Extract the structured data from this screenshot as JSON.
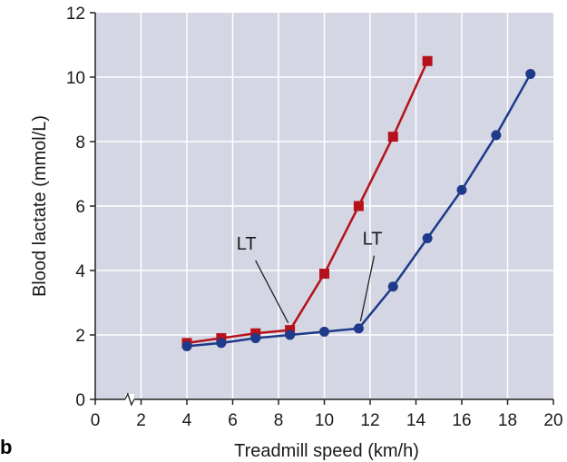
{
  "panel_label": "b",
  "chart_data": {
    "type": "line",
    "xlabel": "Treadmill speed (km/h)",
    "ylabel": "Blood lactate (mmol/L)",
    "xlim": [
      0,
      20
    ],
    "ylim": [
      0,
      12
    ],
    "xticks": [
      0,
      2,
      4,
      6,
      8,
      10,
      12,
      14,
      16,
      18,
      20
    ],
    "yticks": [
      0,
      2,
      4,
      6,
      8,
      10,
      12
    ],
    "grid": true,
    "axis_break": "x",
    "background_color": "#d4d6e4",
    "series": [
      {
        "color": "#b5121b",
        "marker": "square",
        "x": [
          4,
          5.5,
          7,
          8.5,
          10,
          11.5,
          13,
          14.5
        ],
        "y": [
          1.75,
          1.9,
          2.05,
          2.15,
          3.9,
          6.0,
          8.15,
          10.5
        ]
      },
      {
        "color": "#1f3a8a",
        "marker": "circle",
        "x": [
          4,
          5.5,
          7,
          8.5,
          10,
          11.5,
          13,
          14.5,
          16,
          17.5,
          19
        ],
        "y": [
          1.65,
          1.75,
          1.9,
          2.0,
          2.1,
          2.2,
          3.5,
          5.0,
          6.5,
          8.2,
          10.1
        ]
      }
    ],
    "annotations": [
      {
        "text": "LT",
        "x": 8.5,
        "y": 2.15,
        "label_x": 6.6,
        "label_y": 4.65
      },
      {
        "text": "LT",
        "x": 11.5,
        "y": 2.2,
        "label_x": 12.1,
        "label_y": 4.8
      }
    ]
  }
}
